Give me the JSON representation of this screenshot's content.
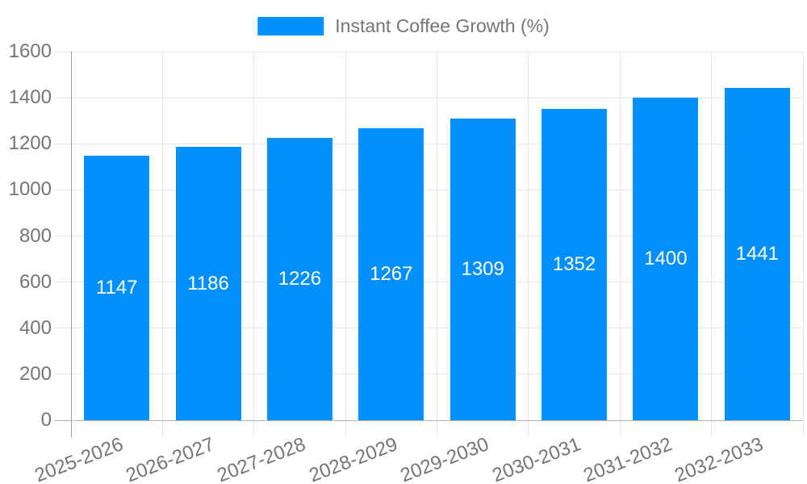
{
  "legend": {
    "label": "Instant Coffee Growth (%)"
  },
  "chart_data": {
    "type": "bar",
    "title": "",
    "categories": [
      "2025-2026",
      "2026-2027",
      "2027-2028",
      "2028-2029",
      "2029-2030",
      "2030-2031",
      "2031-2032",
      "2032-2033"
    ],
    "series": [
      {
        "name": "Instant Coffee Growth (%)",
        "values": [
          1147,
          1186,
          1226,
          1267,
          1309,
          1352,
          1400,
          1441
        ]
      }
    ],
    "value_labels": [
      1147,
      1186,
      1226,
      1267,
      1309,
      1352,
      1400,
      1441
    ],
    "xlabel": "",
    "ylabel": "",
    "ylim": [
      0,
      1600
    ],
    "yticks": [
      0,
      200,
      400,
      600,
      800,
      1000,
      1200,
      1400,
      1600
    ],
    "grid": "both",
    "legend_position": "top",
    "bar_color": "#008FFB",
    "value_label_color": "#FFFFFF",
    "axis_text_color": "#757575",
    "gridline_color": "#E6E6E6",
    "axis_line_color": "#9E9E9E",
    "baseline_color": "#B3B3B3",
    "background_color": "#FFFFFF"
  }
}
